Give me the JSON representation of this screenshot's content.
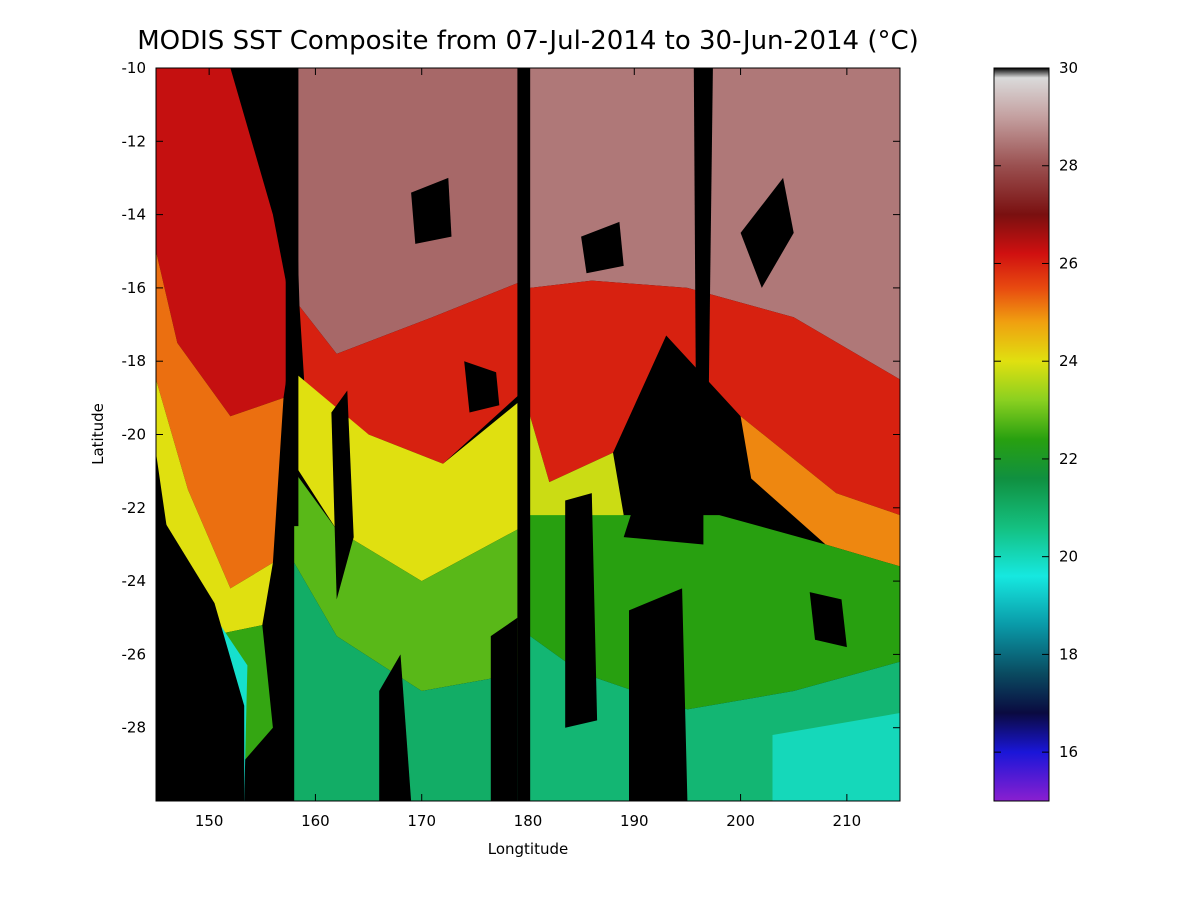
{
  "chart_data": {
    "type": "heatmap",
    "title": "MODIS SST Composite from 07-Jul-2014 to 30-Jun-2014 (°C)",
    "xlabel": "Longtitude",
    "ylabel": "Latitude",
    "xlim": [
      145,
      215
    ],
    "ylim": [
      -30,
      -10
    ],
    "x_ticks": [
      150,
      160,
      170,
      180,
      190,
      200,
      210
    ],
    "y_ticks": [
      -10,
      -12,
      -14,
      -16,
      -18,
      -20,
      -22,
      -24,
      -26,
      -28
    ],
    "colorbar": {
      "range": [
        15,
        30
      ],
      "ticks": [
        16,
        18,
        20,
        22,
        24,
        26,
        28,
        30
      ],
      "stops": [
        {
          "value": 15.0,
          "color": "#8a1fd0"
        },
        {
          "value": 16.0,
          "color": "#1a16d8"
        },
        {
          "value": 16.8,
          "color": "#0a0a40"
        },
        {
          "value": 17.6,
          "color": "#0a4a60"
        },
        {
          "value": 18.6,
          "color": "#0a9aa8"
        },
        {
          "value": 19.6,
          "color": "#16e8e0"
        },
        {
          "value": 20.6,
          "color": "#14c080"
        },
        {
          "value": 21.6,
          "color": "#109040"
        },
        {
          "value": 22.4,
          "color": "#28a010"
        },
        {
          "value": 23.2,
          "color": "#8ad020"
        },
        {
          "value": 24.0,
          "color": "#e0e010"
        },
        {
          "value": 24.8,
          "color": "#f0a010"
        },
        {
          "value": 25.5,
          "color": "#e84a10"
        },
        {
          "value": 26.2,
          "color": "#d01010"
        },
        {
          "value": 27.0,
          "color": "#7a1010"
        },
        {
          "value": 28.0,
          "color": "#9a5050"
        },
        {
          "value": 29.0,
          "color": "#c4a0a0"
        },
        {
          "value": 29.8,
          "color": "#dadada"
        },
        {
          "value": 30.0,
          "color": "#000000"
        }
      ]
    },
    "regions": [
      {
        "name": "cloud-mask",
        "color": "#000000",
        "polygon": [
          [
            145,
            -10
          ],
          [
            215,
            -10
          ],
          [
            215,
            -30
          ],
          [
            145,
            -30
          ]
        ]
      },
      {
        "name": "warm-tropics-west",
        "value": 28.3,
        "polygon": [
          [
            157.8,
            -10
          ],
          [
            179.6,
            -10
          ],
          [
            179.6,
            -15.8
          ],
          [
            171,
            -16.8
          ],
          [
            162,
            -17.8
          ],
          [
            158.5,
            -16.5
          ]
        ]
      },
      {
        "name": "warm-tropics-east",
        "value": 28.5,
        "polygon": [
          [
            180.2,
            -10
          ],
          [
            215,
            -10
          ],
          [
            215,
            -18.5
          ],
          [
            205,
            -16.8
          ],
          [
            195,
            -16.0
          ],
          [
            186,
            -15.8
          ],
          [
            180.2,
            -16.0
          ]
        ]
      },
      {
        "name": "red-band-west",
        "value": 26.3,
        "polygon": [
          [
            145,
            -10
          ],
          [
            152,
            -10
          ],
          [
            156,
            -14
          ],
          [
            158,
            -17
          ],
          [
            157,
            -19
          ],
          [
            152,
            -19.5
          ],
          [
            147,
            -17.5
          ],
          [
            145,
            -15
          ]
        ]
      },
      {
        "name": "red-band-mid",
        "value": 26.0,
        "polygon": [
          [
            158.5,
            -16.5
          ],
          [
            162,
            -17.8
          ],
          [
            171,
            -16.8
          ],
          [
            179.6,
            -15.8
          ],
          [
            179.6,
            -18.8
          ],
          [
            172,
            -20.8
          ],
          [
            165,
            -20.0
          ],
          [
            159,
            -18.8
          ]
        ]
      },
      {
        "name": "red-band-east",
        "value": 26.0,
        "polygon": [
          [
            180.2,
            -16.0
          ],
          [
            186,
            -15.8
          ],
          [
            195,
            -16.0
          ],
          [
            205,
            -16.8
          ],
          [
            215,
            -18.5
          ],
          [
            215,
            -22.2
          ],
          [
            209,
            -21.6
          ],
          [
            200,
            -19.5
          ],
          [
            193,
            -17.3
          ],
          [
            188,
            -20.5
          ],
          [
            182,
            -21.3
          ],
          [
            180.2,
            -19.5
          ]
        ]
      },
      {
        "name": "orange-coastal",
        "value": 25.2,
        "polygon": [
          [
            145,
            -15
          ],
          [
            147,
            -17.5
          ],
          [
            152,
            -19.5
          ],
          [
            157,
            -19
          ],
          [
            156,
            -23.5
          ],
          [
            152,
            -24.2
          ],
          [
            148,
            -21.5
          ],
          [
            145,
            -18.5
          ]
        ]
      },
      {
        "name": "orange-east",
        "value": 25.0,
        "polygon": [
          [
            200,
            -19.5
          ],
          [
            209,
            -21.6
          ],
          [
            215,
            -22.2
          ],
          [
            215,
            -23.6
          ],
          [
            208,
            -23.0
          ],
          [
            201,
            -21.2
          ]
        ]
      },
      {
        "name": "yellow-mid",
        "value": 24.0,
        "polygon": [
          [
            158,
            -18.3
          ],
          [
            165,
            -20.0
          ],
          [
            172,
            -20.8
          ],
          [
            179.6,
            -19.0
          ],
          [
            179.6,
            -22.5
          ],
          [
            170,
            -24.0
          ],
          [
            162,
            -22.6
          ],
          [
            158,
            -20.8
          ]
        ]
      },
      {
        "name": "yellow-coastal",
        "value": 24.0,
        "polygon": [
          [
            145,
            -18.5
          ],
          [
            148,
            -21.5
          ],
          [
            152,
            -24.2
          ],
          [
            156,
            -23.5
          ],
          [
            155,
            -25.2
          ],
          [
            150,
            -25.5
          ],
          [
            146,
            -22.5
          ],
          [
            145,
            -20.5
          ]
        ]
      },
      {
        "name": "yellow-east",
        "value": 23.8,
        "polygon": [
          [
            180.2,
            -19.5
          ],
          [
            182,
            -21.3
          ],
          [
            188,
            -20.5
          ],
          [
            189,
            -22.2
          ],
          [
            183,
            -22.8
          ],
          [
            180.2,
            -22.2
          ]
        ]
      },
      {
        "name": "green-mid",
        "value": 22.8,
        "polygon": [
          [
            158,
            -21
          ],
          [
            162,
            -22.6
          ],
          [
            170,
            -24.0
          ],
          [
            179.6,
            -22.5
          ],
          [
            179.6,
            -26.5
          ],
          [
            170,
            -27.0
          ],
          [
            162,
            -25.5
          ],
          [
            158,
            -23.5
          ]
        ]
      },
      {
        "name": "green-east",
        "value": 22.4,
        "polygon": [
          [
            180.2,
            -22.2
          ],
          [
            189,
            -22.2
          ],
          [
            198,
            -22.2
          ],
          [
            208,
            -23.0
          ],
          [
            215,
            -23.6
          ],
          [
            215,
            -26.2
          ],
          [
            205,
            -27.0
          ],
          [
            195,
            -27.5
          ],
          [
            185,
            -26.5
          ],
          [
            180.2,
            -25.5
          ]
        ]
      },
      {
        "name": "green-coastal",
        "value": 22.5,
        "polygon": [
          [
            146,
            -22.5
          ],
          [
            150,
            -25.5
          ],
          [
            155,
            -25.2
          ],
          [
            156,
            -28
          ],
          [
            150,
            -30
          ],
          [
            146,
            -27
          ],
          [
            145,
            -24
          ]
        ]
      },
      {
        "name": "teal-south-west",
        "value": 21.0,
        "polygon": [
          [
            158,
            -23.5
          ],
          [
            162,
            -25.5
          ],
          [
            170,
            -27.0
          ],
          [
            179.6,
            -26.5
          ],
          [
            179.6,
            -30
          ],
          [
            158,
            -30
          ]
        ]
      },
      {
        "name": "teal-south-east",
        "value": 20.8,
        "polygon": [
          [
            180.2,
            -25.5
          ],
          [
            185,
            -26.5
          ],
          [
            195,
            -27.5
          ],
          [
            205,
            -27.0
          ],
          [
            215,
            -26.2
          ],
          [
            215,
            -30
          ],
          [
            180.2,
            -30
          ]
        ]
      },
      {
        "name": "cyan-south-east",
        "value": 20.0,
        "polygon": [
          [
            203,
            -28.2
          ],
          [
            215,
            -27.6
          ],
          [
            215,
            -30
          ],
          [
            203,
            -30
          ]
        ]
      },
      {
        "name": "cyan-coastal",
        "value": 19.8,
        "polygon": [
          [
            150.6,
            -25.0
          ],
          [
            153.6,
            -26.3
          ],
          [
            153.3,
            -30
          ],
          [
            150.6,
            -30
          ]
        ]
      }
    ],
    "gaps": [
      {
        "name": "gap-western",
        "polygon": [
          [
            145,
            -22
          ],
          [
            150.5,
            -24.6
          ],
          [
            153.3,
            -27.4
          ],
          [
            153.3,
            -30
          ],
          [
            145,
            -30
          ]
        ]
      },
      {
        "name": "gap-swath-157",
        "polygon": [
          [
            157.2,
            -10
          ],
          [
            158.4,
            -10
          ],
          [
            158.4,
            -22.5
          ],
          [
            157.2,
            -22.5
          ]
        ]
      },
      {
        "name": "gap-swath-179",
        "polygon": [
          [
            179.0,
            -10
          ],
          [
            180.2,
            -10
          ],
          [
            180.2,
            -30
          ],
          [
            179.0,
            -30
          ]
        ]
      },
      {
        "name": "gap-swath-196",
        "polygon": [
          [
            195.6,
            -10
          ],
          [
            197.4,
            -10
          ],
          [
            197.0,
            -19.0
          ],
          [
            195.8,
            -19.0
          ]
        ]
      },
      {
        "name": "gap-cloud-192",
        "polygon": [
          [
            191,
            -21.0
          ],
          [
            194,
            -18.2
          ],
          [
            196.5,
            -20.2
          ],
          [
            196.5,
            -23.0
          ],
          [
            189,
            -22.8
          ]
        ]
      },
      {
        "name": "gap-cloud-168",
        "polygon": [
          [
            166,
            -27.0
          ],
          [
            168,
            -26.0
          ],
          [
            169,
            -30
          ],
          [
            166,
            -30
          ]
        ]
      },
      {
        "name": "gap-cloud-176",
        "polygon": [
          [
            176.5,
            -25.5
          ],
          [
            179.0,
            -25.0
          ],
          [
            179.0,
            -30
          ],
          [
            176.5,
            -30
          ]
        ]
      },
      {
        "name": "gap-cloud-184",
        "polygon": [
          [
            183.5,
            -21.8
          ],
          [
            186,
            -21.6
          ],
          [
            186.5,
            -27.8
          ],
          [
            183.5,
            -28.0
          ]
        ]
      },
      {
        "name": "gap-cloud-192-south",
        "polygon": [
          [
            189.5,
            -24.8
          ],
          [
            194.5,
            -24.2
          ],
          [
            195,
            -30
          ],
          [
            189.5,
            -30
          ]
        ]
      },
      {
        "name": "gap-cloud-204",
        "polygon": [
          [
            200,
            -14.5
          ],
          [
            204,
            -13.0
          ],
          [
            205,
            -14.5
          ],
          [
            202,
            -16.0
          ]
        ]
      },
      {
        "name": "gap-cloud-188",
        "polygon": [
          [
            185,
            -14.6
          ],
          [
            188.6,
            -14.2
          ],
          [
            189,
            -15.4
          ],
          [
            185.5,
            -15.6
          ]
        ]
      },
      {
        "name": "gap-cloud-171",
        "polygon": [
          [
            169,
            -13.4
          ],
          [
            172.5,
            -13.0
          ],
          [
            172.8,
            -14.6
          ],
          [
            169.4,
            -14.8
          ]
        ]
      },
      {
        "name": "gap-cloud-162",
        "polygon": [
          [
            161.5,
            -19.4
          ],
          [
            163,
            -18.8
          ],
          [
            163.6,
            -22.8
          ],
          [
            162,
            -24.5
          ]
        ]
      },
      {
        "name": "gap-cloud-175",
        "polygon": [
          [
            174,
            -18.0
          ],
          [
            177,
            -18.3
          ],
          [
            177.3,
            -19.2
          ],
          [
            174.5,
            -19.4
          ]
        ]
      },
      {
        "name": "gap-cloud-208",
        "polygon": [
          [
            206.5,
            -24.3
          ],
          [
            209.5,
            -24.5
          ],
          [
            210,
            -25.8
          ],
          [
            207.0,
            -25.6
          ]
        ]
      }
    ]
  }
}
